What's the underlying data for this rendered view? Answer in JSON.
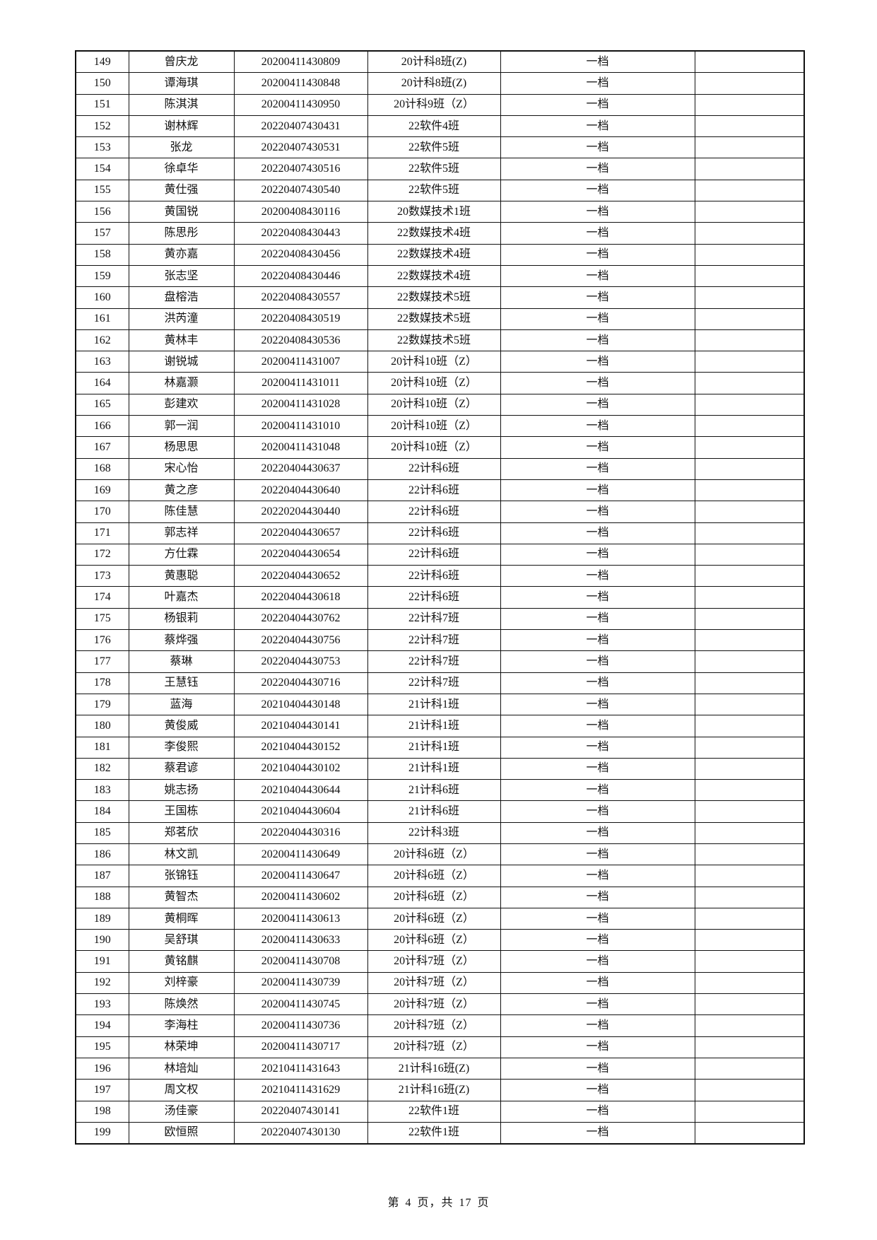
{
  "table": {
    "rows": [
      [
        "149",
        "曾庆龙",
        "20200411430809",
        "20计科8班(Z)",
        "一档",
        ""
      ],
      [
        "150",
        "谭海琪",
        "20200411430848",
        "20计科8班(Z)",
        "一档",
        ""
      ],
      [
        "151",
        "陈淇淇",
        "20200411430950",
        "20计科9班（Z）",
        "一档",
        ""
      ],
      [
        "152",
        "谢林辉",
        "20220407430431",
        "22软件4班",
        "一档",
        ""
      ],
      [
        "153",
        "张龙",
        "20220407430531",
        "22软件5班",
        "一档",
        ""
      ],
      [
        "154",
        "徐卓华",
        "20220407430516",
        "22软件5班",
        "一档",
        ""
      ],
      [
        "155",
        "黄仕强",
        "20220407430540",
        "22软件5班",
        "一档",
        ""
      ],
      [
        "156",
        "黄国锐",
        "20200408430116",
        "20数媒技术1班",
        "一档",
        ""
      ],
      [
        "157",
        "陈思彤",
        "20220408430443",
        "22数媒技术4班",
        "一档",
        ""
      ],
      [
        "158",
        "黄亦嘉",
        "20220408430456",
        "22数媒技术4班",
        "一档",
        ""
      ],
      [
        "159",
        "张志坚",
        "20220408430446",
        "22数媒技术4班",
        "一档",
        ""
      ],
      [
        "160",
        "盘榕浩",
        "20220408430557",
        "22数媒技术5班",
        "一档",
        ""
      ],
      [
        "161",
        "洪芮潼",
        "20220408430519",
        "22数媒技术5班",
        "一档",
        ""
      ],
      [
        "162",
        "黄林丰",
        "20220408430536",
        "22数媒技术5班",
        "一档",
        ""
      ],
      [
        "163",
        "谢锐城",
        "20200411431007",
        "20计科10班（Z）",
        "一档",
        ""
      ],
      [
        "164",
        "林嘉灏",
        "20200411431011",
        "20计科10班（Z）",
        "一档",
        ""
      ],
      [
        "165",
        "彭建欢",
        "20200411431028",
        "20计科10班（Z）",
        "一档",
        ""
      ],
      [
        "166",
        "郭一润",
        "20200411431010",
        "20计科10班（Z）",
        "一档",
        ""
      ],
      [
        "167",
        "杨思思",
        "20200411431048",
        "20计科10班（Z）",
        "一档",
        ""
      ],
      [
        "168",
        "宋心怡",
        "20220404430637",
        "22计科6班",
        "一档",
        ""
      ],
      [
        "169",
        "黄之彦",
        "20220404430640",
        "22计科6班",
        "一档",
        ""
      ],
      [
        "170",
        "陈佳慧",
        "20220204430440",
        "22计科6班",
        "一档",
        ""
      ],
      [
        "171",
        "郭志祥",
        "20220404430657",
        "22计科6班",
        "一档",
        ""
      ],
      [
        "172",
        "方仕霖",
        "20220404430654",
        "22计科6班",
        "一档",
        ""
      ],
      [
        "173",
        "黄惠聪",
        "20220404430652",
        "22计科6班",
        "一档",
        ""
      ],
      [
        "174",
        "叶嘉杰",
        "20220404430618",
        "22计科6班",
        "一档",
        ""
      ],
      [
        "175",
        "杨银莉",
        "20220404430762",
        "22计科7班",
        "一档",
        ""
      ],
      [
        "176",
        "蔡烨强",
        "20220404430756",
        "22计科7班",
        "一档",
        ""
      ],
      [
        "177",
        "蔡琳",
        "20220404430753",
        "22计科7班",
        "一档",
        ""
      ],
      [
        "178",
        "王慧钰",
        "20220404430716",
        "22计科7班",
        "一档",
        ""
      ],
      [
        "179",
        "蓝海",
        "20210404430148",
        "21计科1班",
        "一档",
        ""
      ],
      [
        "180",
        "黄俊威",
        "20210404430141",
        "21计科1班",
        "一档",
        ""
      ],
      [
        "181",
        "李俊熙",
        "20210404430152",
        "21计科1班",
        "一档",
        ""
      ],
      [
        "182",
        "蔡君谚",
        "20210404430102",
        "21计科1班",
        "一档",
        ""
      ],
      [
        "183",
        "姚志扬",
        "20210404430644",
        "21计科6班",
        "一档",
        ""
      ],
      [
        "184",
        "王国栋",
        "20210404430604",
        "21计科6班",
        "一档",
        ""
      ],
      [
        "185",
        "郑茗欣",
        "20220404430316",
        "22计科3班",
        "一档",
        ""
      ],
      [
        "186",
        "林文凯",
        "20200411430649",
        "20计科6班（Z）",
        "一档",
        ""
      ],
      [
        "187",
        "张锦钰",
        "20200411430647",
        "20计科6班（Z）",
        "一档",
        ""
      ],
      [
        "188",
        "黄智杰",
        "20200411430602",
        "20计科6班（Z）",
        "一档",
        ""
      ],
      [
        "189",
        "黄桐晖",
        "20200411430613",
        "20计科6班（Z）",
        "一档",
        ""
      ],
      [
        "190",
        "吴舒琪",
        "20200411430633",
        "20计科6班（Z）",
        "一档",
        ""
      ],
      [
        "191",
        "黄铭麒",
        "20200411430708",
        "20计科7班（Z）",
        "一档",
        ""
      ],
      [
        "192",
        "刘梓豪",
        "20200411430739",
        "20计科7班（Z）",
        "一档",
        ""
      ],
      [
        "193",
        "陈焕然",
        "20200411430745",
        "20计科7班（Z）",
        "一档",
        ""
      ],
      [
        "194",
        "李海柱",
        "20200411430736",
        "20计科7班（Z）",
        "一档",
        ""
      ],
      [
        "195",
        "林荣坤",
        "20200411430717",
        "20计科7班（Z）",
        "一档",
        ""
      ],
      [
        "196",
        "林培灿",
        "20210411431643",
        "21计科16班(Z)",
        "一档",
        ""
      ],
      [
        "197",
        "周文权",
        "20210411431629",
        "21计科16班(Z)",
        "一档",
        ""
      ],
      [
        "198",
        "汤佳豪",
        "20220407430141",
        "22软件1班",
        "一档",
        ""
      ],
      [
        "199",
        "欧恒照",
        "20220407430130",
        "22软件1班",
        "一档",
        ""
      ]
    ]
  },
  "footer": {
    "page_prefix": "第",
    "page_number": "4",
    "page_mid": "页，共",
    "page_total": "17",
    "page_suffix": "页"
  }
}
